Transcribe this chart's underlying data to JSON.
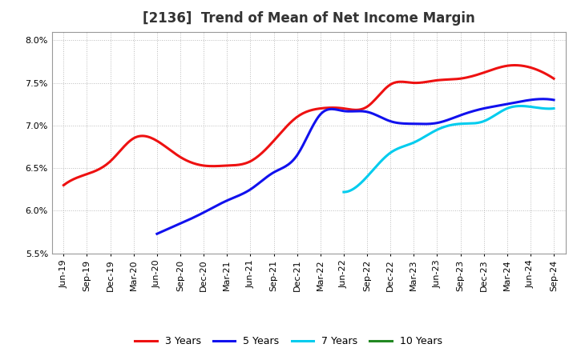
{
  "title": "[2136]  Trend of Mean of Net Income Margin",
  "ylim": [
    0.055,
    0.081
  ],
  "yticks": [
    0.055,
    0.06,
    0.065,
    0.07,
    0.075,
    0.08
  ],
  "ytick_labels": [
    "5.5%",
    "6.0%",
    "6.5%",
    "7.0%",
    "7.5%",
    "8.0%"
  ],
  "x_labels": [
    "Jun-19",
    "Sep-19",
    "Dec-19",
    "Mar-20",
    "Jun-20",
    "Sep-20",
    "Dec-20",
    "Mar-21",
    "Jun-21",
    "Sep-21",
    "Dec-21",
    "Mar-22",
    "Jun-22",
    "Sep-22",
    "Dec-22",
    "Mar-23",
    "Jun-23",
    "Sep-23",
    "Dec-23",
    "Mar-24",
    "Jun-24",
    "Sep-24"
  ],
  "series_3y": [
    0.063,
    0.0643,
    0.0658,
    0.0685,
    0.0682,
    0.0663,
    0.0653,
    0.0653,
    0.0658,
    0.0682,
    0.071,
    0.072,
    0.072,
    0.0722,
    0.0748,
    0.075,
    0.0753,
    0.0755,
    0.0762,
    0.077,
    0.0768,
    0.0755
  ],
  "series_5y": [
    null,
    null,
    null,
    null,
    0.0573,
    0.0585,
    0.0598,
    0.0612,
    0.0625,
    0.0645,
    0.0665,
    0.0713,
    0.0717,
    0.0716,
    0.0705,
    0.0702,
    0.0703,
    0.0712,
    0.072,
    0.0725,
    0.073,
    0.073
  ],
  "series_7y": [
    null,
    null,
    null,
    null,
    null,
    null,
    null,
    null,
    null,
    null,
    null,
    null,
    0.0622,
    0.064,
    0.0668,
    0.068,
    0.0695,
    0.0702,
    0.0705,
    0.072,
    0.0722,
    0.072
  ],
  "series_10y": [
    null,
    null,
    null,
    null,
    null,
    null,
    null,
    null,
    null,
    null,
    null,
    null,
    null,
    null,
    null,
    null,
    null,
    null,
    null,
    null,
    null,
    null
  ],
  "color_3y": "#EE1111",
  "color_5y": "#1111EE",
  "color_7y": "#00CCEE",
  "color_10y": "#228822",
  "legend_labels": [
    "3 Years",
    "5 Years",
    "7 Years",
    "10 Years"
  ],
  "background_color": "#FFFFFF",
  "grid_color": "#BBBBBB",
  "title_fontsize": 12,
  "tick_fontsize": 8,
  "linewidth": 2.2
}
